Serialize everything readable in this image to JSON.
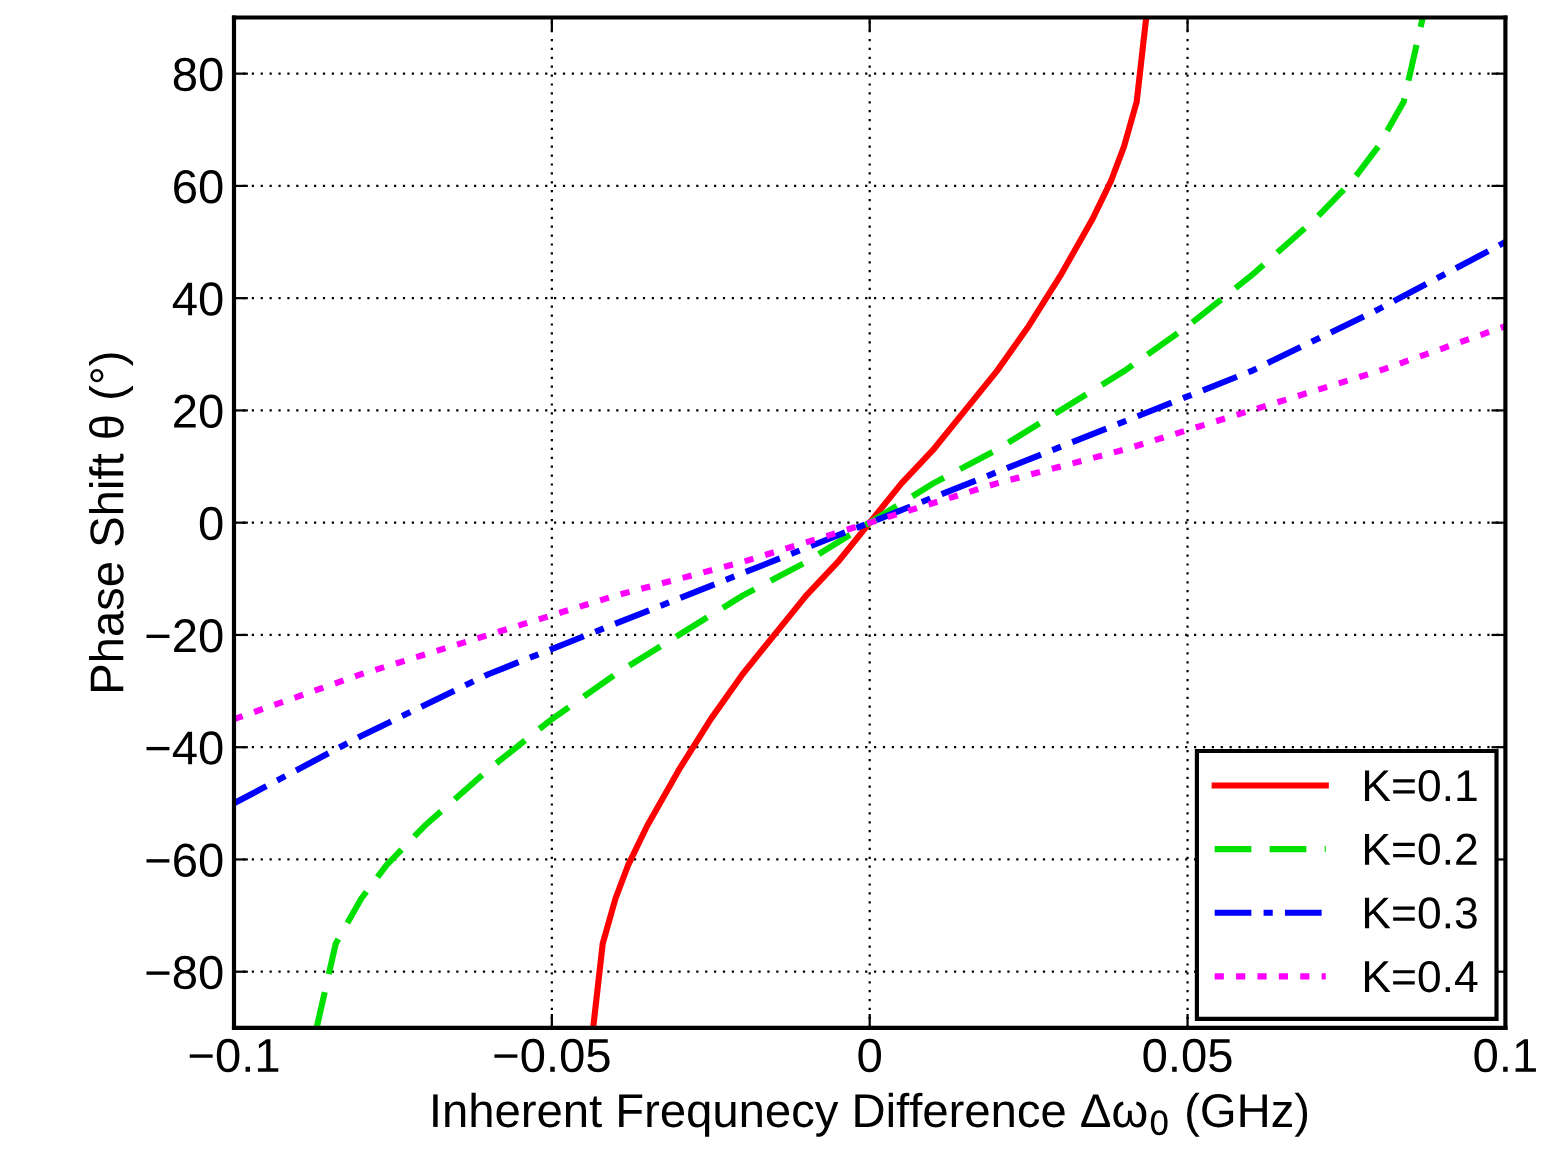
{
  "chart_data": {
    "type": "line",
    "xlabel": "Inherent Frequnecy Difference Δω$_{0}$ (GHz)",
    "ylabel": "Phase Shift θ (°)",
    "xlim": [
      -0.1,
      0.1
    ],
    "ylim": [
      -90,
      90
    ],
    "xticks": [
      {
        "value": -0.1,
        "label": "−0.1"
      },
      {
        "value": -0.05,
        "label": "−0.05"
      },
      0,
      0.05,
      0.1
    ],
    "yticks": [
      {
        "value": -80,
        "label": "−80"
      },
      {
        "value": -60,
        "label": "−60"
      },
      {
        "value": -40,
        "label": "−40"
      },
      {
        "value": -20,
        "label": "−20"
      },
      0,
      20,
      40,
      60,
      80
    ],
    "grid": true,
    "legend": "bottom right",
    "marker": "none",
    "series": [
      {
        "name": "K=0.1",
        "color": "#ff0000",
        "line_style": "solid",
        "x": [
          -0.0435,
          -0.042,
          -0.04,
          -0.038,
          -0.035,
          -0.03,
          -0.025,
          -0.02,
          -0.015,
          -0.01,
          -0.005,
          0,
          0.005,
          0.01,
          0.015,
          0.02,
          0.025,
          0.03,
          0.035,
          0.038,
          0.04,
          0.042,
          0.0435
        ],
        "values": [
          -90,
          -75,
          -67,
          -61,
          -54,
          -44,
          -35,
          -27,
          -20,
          -13,
          -7,
          0,
          7,
          13,
          20,
          27,
          35,
          44,
          54,
          61,
          67,
          75,
          90
        ]
      },
      {
        "name": "K=0.2",
        "color": "#00e000",
        "line_style": "dashed",
        "x": [
          -0.087,
          -0.084,
          -0.08,
          -0.076,
          -0.07,
          -0.06,
          -0.05,
          -0.04,
          -0.03,
          -0.02,
          -0.01,
          0,
          0.01,
          0.02,
          0.03,
          0.04,
          0.05,
          0.06,
          0.07,
          0.076,
          0.08,
          0.084,
          0.087
        ],
        "values": [
          -90,
          -75,
          -67,
          -61,
          -54,
          -44,
          -35,
          -27,
          -20,
          -13,
          -7,
          0,
          7,
          13,
          20,
          27,
          35,
          44,
          54,
          61,
          67,
          75,
          90
        ]
      },
      {
        "name": "K=0.3",
        "color": "#0000ff",
        "line_style": "dashdot",
        "x": [
          -0.1,
          -0.08,
          -0.06,
          -0.04,
          -0.02,
          0,
          0.02,
          0.04,
          0.06,
          0.08,
          0.1
        ],
        "values": [
          -50,
          -38,
          -27,
          -18,
          -9,
          0,
          9,
          18,
          27,
          38,
          50
        ]
      },
      {
        "name": "K=0.4",
        "color": "#ff00ff",
        "line_style": "dotted",
        "x": [
          -0.1,
          -0.08,
          -0.06,
          -0.04,
          -0.02,
          0,
          0.02,
          0.04,
          0.06,
          0.08,
          0.1
        ],
        "values": [
          -35,
          -27,
          -20,
          -13,
          -7,
          0,
          7,
          13,
          20,
          27,
          35
        ]
      }
    ]
  }
}
